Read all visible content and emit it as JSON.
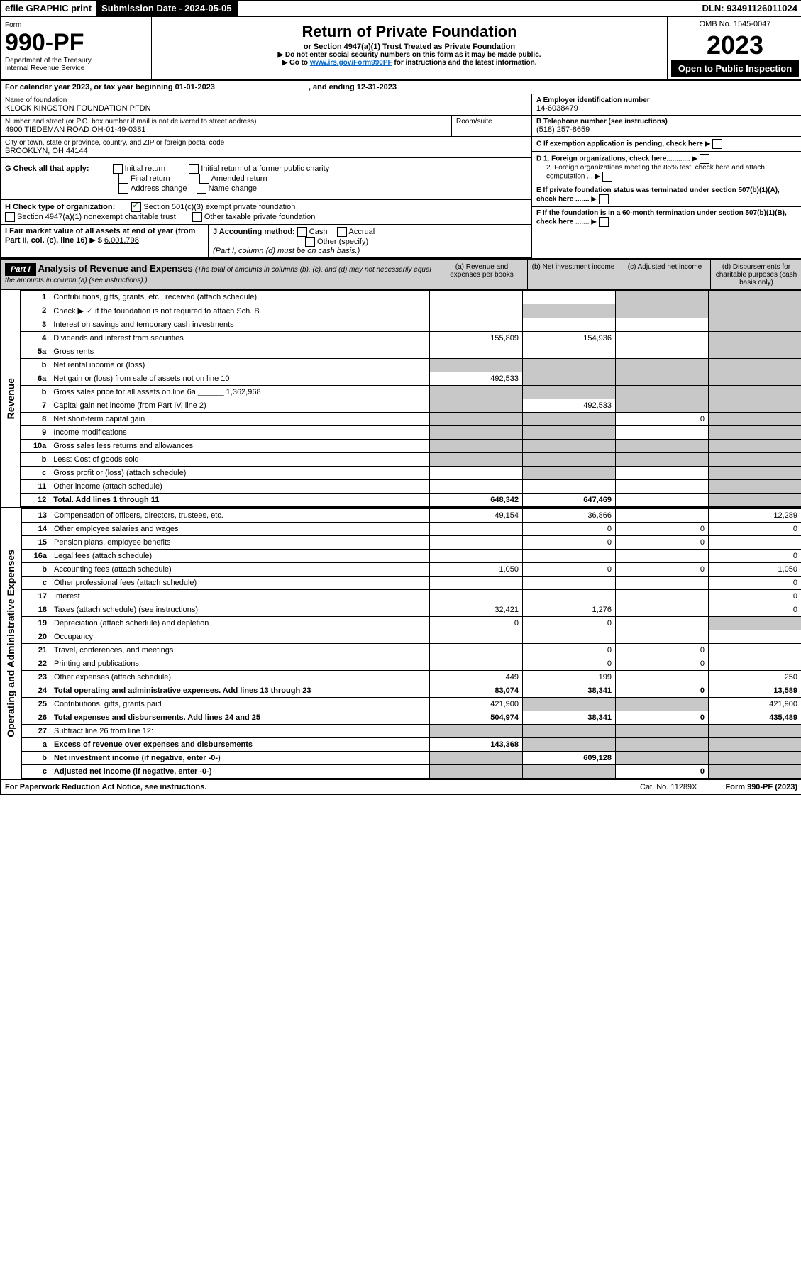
{
  "topbar": {
    "efile": "efile GRAPHIC print",
    "sub_label": "Submission Date - 2024-05-05",
    "dln": "DLN: 93491126011024"
  },
  "header": {
    "form_label": "Form",
    "form_no": "990-PF",
    "dept": "Department of the Treasury",
    "irs": "Internal Revenue Service",
    "title": "Return of Private Foundation",
    "subtitle": "or Section 4947(a)(1) Trust Treated as Private Foundation",
    "note1": "▶ Do not enter social security numbers on this form as it may be made public.",
    "note2_pre": "▶ Go to ",
    "note2_link": "www.irs.gov/Form990PF",
    "note2_post": " for instructions and the latest information.",
    "omb": "OMB No. 1545-0047",
    "year": "2023",
    "open": "Open to Public Inspection"
  },
  "period": {
    "label": "For calendar year 2023, or tax year beginning 01-01-2023",
    "ending": ", and ending 12-31-2023"
  },
  "id": {
    "name_label": "Name of foundation",
    "name": "KLOCK KINGSTON FOUNDATION PFDN",
    "addr_label": "Number and street (or P.O. box number if mail is not delivered to street address)",
    "addr": "4900 TIEDEMAN ROAD OH-01-49-0381",
    "room_label": "Room/suite",
    "city_label": "City or town, state or province, country, and ZIP or foreign postal code",
    "city": "BROOKLYN, OH  44144",
    "a_label": "A Employer identification number",
    "a_val": "14-6038479",
    "b_label": "B Telephone number (see instructions)",
    "b_val": "(518) 257-8659",
    "c_label": "C If exemption application is pending, check here",
    "d1": "D 1. Foreign organizations, check here............",
    "d2": "2. Foreign organizations meeting the 85% test, check here and attach computation ...",
    "e_label": "E If private foundation status was terminated under section 507(b)(1)(A), check here .......",
    "f_label": "F If the foundation is in a 60-month termination under section 507(b)(1)(B), check here ......."
  },
  "g": {
    "label": "G Check all that apply:",
    "opts": [
      "Initial return",
      "Final return",
      "Address change",
      "Initial return of a former public charity",
      "Amended return",
      "Name change"
    ]
  },
  "h": {
    "label": "H Check type of organization:",
    "opt1": "Section 501(c)(3) exempt private foundation",
    "opt2": "Section 4947(a)(1) nonexempt charitable trust",
    "opt3": "Other taxable private foundation"
  },
  "i": {
    "label": "I Fair market value of all assets at end of year (from Part II, col. (c), line 16)",
    "val": "6,001,798"
  },
  "j": {
    "label": "J Accounting method:",
    "cash": "Cash",
    "accrual": "Accrual",
    "other": "Other (specify)",
    "note": "(Part I, column (d) must be on cash basis.)"
  },
  "part1": {
    "label": "Part I",
    "title": "Analysis of Revenue and Expenses",
    "note": "(The total of amounts in columns (b), (c), and (d) may not necessarily equal the amounts in column (a) (see instructions).)",
    "col_a": "(a) Revenue and expenses per books",
    "col_b": "(b) Net investment income",
    "col_c": "(c) Adjusted net income",
    "col_d": "(d) Disbursements for charitable purposes (cash basis only)"
  },
  "sections": {
    "revenue": "Revenue",
    "expenses": "Operating and Administrative Expenses"
  },
  "rows": [
    {
      "n": "1",
      "d": "Contributions, gifts, grants, etc., received (attach schedule)",
      "a": "",
      "b": "",
      "c": "G",
      "dd": "G"
    },
    {
      "n": "2",
      "d": "Check ▶ ☑ if the foundation is not required to attach Sch. B",
      "a": "",
      "b": "G",
      "c": "G",
      "dd": "G"
    },
    {
      "n": "3",
      "d": "Interest on savings and temporary cash investments",
      "a": "",
      "b": "",
      "c": "",
      "dd": "G"
    },
    {
      "n": "4",
      "d": "Dividends and interest from securities",
      "a": "155,809",
      "b": "154,936",
      "c": "",
      "dd": "G"
    },
    {
      "n": "5a",
      "d": "Gross rents",
      "a": "",
      "b": "",
      "c": "",
      "dd": "G"
    },
    {
      "n": "b",
      "d": "Net rental income or (loss)",
      "a": "G",
      "b": "G",
      "c": "G",
      "dd": "G"
    },
    {
      "n": "6a",
      "d": "Net gain or (loss) from sale of assets not on line 10",
      "a": "492,533",
      "b": "G",
      "c": "G",
      "dd": "G"
    },
    {
      "n": "b",
      "d": "Gross sales price for all assets on line 6a ______ 1,362,968",
      "a": "G",
      "b": "G",
      "c": "G",
      "dd": "G"
    },
    {
      "n": "7",
      "d": "Capital gain net income (from Part IV, line 2)",
      "a": "G",
      "b": "492,533",
      "c": "G",
      "dd": "G"
    },
    {
      "n": "8",
      "d": "Net short-term capital gain",
      "a": "G",
      "b": "G",
      "c": "0",
      "dd": "G"
    },
    {
      "n": "9",
      "d": "Income modifications",
      "a": "G",
      "b": "G",
      "c": "",
      "dd": "G"
    },
    {
      "n": "10a",
      "d": "Gross sales less returns and allowances",
      "a": "G",
      "b": "G",
      "c": "G",
      "dd": "G"
    },
    {
      "n": "b",
      "d": "Less: Cost of goods sold",
      "a": "G",
      "b": "G",
      "c": "G",
      "dd": "G"
    },
    {
      "n": "c",
      "d": "Gross profit or (loss) (attach schedule)",
      "a": "",
      "b": "G",
      "c": "",
      "dd": "G"
    },
    {
      "n": "11",
      "d": "Other income (attach schedule)",
      "a": "",
      "b": "",
      "c": "",
      "dd": "G"
    },
    {
      "n": "12",
      "d": "Total. Add lines 1 through 11",
      "bold": true,
      "a": "648,342",
      "b": "647,469",
      "c": "",
      "dd": "G"
    },
    {
      "n": "13",
      "d": "Compensation of officers, directors, trustees, etc.",
      "a": "49,154",
      "b": "36,866",
      "c": "",
      "dd": "12,289"
    },
    {
      "n": "14",
      "d": "Other employee salaries and wages",
      "a": "",
      "b": "0",
      "c": "0",
      "dd": "0"
    },
    {
      "n": "15",
      "d": "Pension plans, employee benefits",
      "a": "",
      "b": "0",
      "c": "0",
      "dd": ""
    },
    {
      "n": "16a",
      "d": "Legal fees (attach schedule)",
      "a": "",
      "b": "",
      "c": "",
      "dd": "0"
    },
    {
      "n": "b",
      "d": "Accounting fees (attach schedule)",
      "a": "1,050",
      "b": "0",
      "c": "0",
      "dd": "1,050"
    },
    {
      "n": "c",
      "d": "Other professional fees (attach schedule)",
      "a": "",
      "b": "",
      "c": "",
      "dd": "0"
    },
    {
      "n": "17",
      "d": "Interest",
      "a": "",
      "b": "",
      "c": "",
      "dd": "0"
    },
    {
      "n": "18",
      "d": "Taxes (attach schedule) (see instructions)",
      "a": "32,421",
      "b": "1,276",
      "c": "",
      "dd": "0"
    },
    {
      "n": "19",
      "d": "Depreciation (attach schedule) and depletion",
      "a": "0",
      "b": "0",
      "c": "",
      "dd": "G"
    },
    {
      "n": "20",
      "d": "Occupancy",
      "a": "",
      "b": "",
      "c": "",
      "dd": ""
    },
    {
      "n": "21",
      "d": "Travel, conferences, and meetings",
      "a": "",
      "b": "0",
      "c": "0",
      "dd": ""
    },
    {
      "n": "22",
      "d": "Printing and publications",
      "a": "",
      "b": "0",
      "c": "0",
      "dd": ""
    },
    {
      "n": "23",
      "d": "Other expenses (attach schedule)",
      "a": "449",
      "b": "199",
      "c": "",
      "dd": "250"
    },
    {
      "n": "24",
      "d": "Total operating and administrative expenses. Add lines 13 through 23",
      "bold": true,
      "a": "83,074",
      "b": "38,341",
      "c": "0",
      "dd": "13,589"
    },
    {
      "n": "25",
      "d": "Contributions, gifts, grants paid",
      "a": "421,900",
      "b": "G",
      "c": "G",
      "dd": "421,900"
    },
    {
      "n": "26",
      "d": "Total expenses and disbursements. Add lines 24 and 25",
      "bold": true,
      "a": "504,974",
      "b": "38,341",
      "c": "0",
      "dd": "435,489"
    },
    {
      "n": "27",
      "d": "Subtract line 26 from line 12:",
      "a": "G",
      "b": "G",
      "c": "G",
      "dd": "G"
    },
    {
      "n": "a",
      "d": "Excess of revenue over expenses and disbursements",
      "bold": true,
      "a": "143,368",
      "b": "G",
      "c": "G",
      "dd": "G"
    },
    {
      "n": "b",
      "d": "Net investment income (if negative, enter -0-)",
      "bold": true,
      "a": "G",
      "b": "609,128",
      "c": "G",
      "dd": "G"
    },
    {
      "n": "c",
      "d": "Adjusted net income (if negative, enter -0-)",
      "bold": true,
      "a": "G",
      "b": "G",
      "c": "0",
      "dd": "G"
    }
  ],
  "footer": {
    "left": "For Paperwork Reduction Act Notice, see instructions.",
    "mid": "Cat. No. 11289X",
    "right": "Form 990-PF (2023)"
  }
}
